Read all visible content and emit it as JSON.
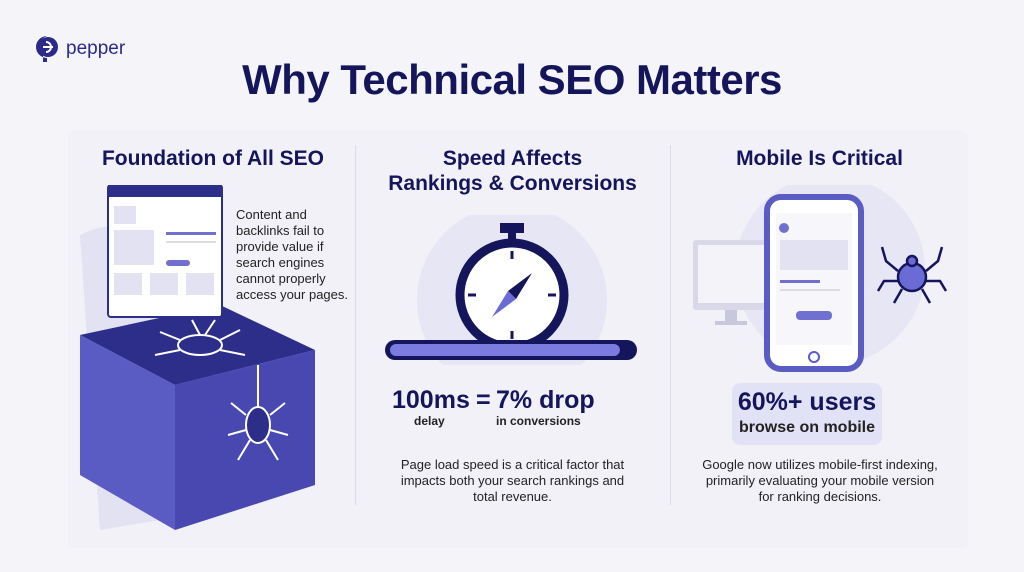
{
  "brand": {
    "name": "pepper",
    "color": "#2a2a8a"
  },
  "title": "Why Technical SEO Matters",
  "colors": {
    "navy": "#15155c",
    "accent": "#6b6bd6",
    "light": "#e4e4f7"
  },
  "columns": [
    {
      "heading": "Foundation of All SEO",
      "body": "Content and backlinks fail to provide value if search engines cannot properly access your pages.",
      "icons": [
        "browser-window-icon",
        "box-icon",
        "spider-icon"
      ]
    },
    {
      "heading_line1": "Speed Affects",
      "heading_line2": "Rankings & Conversions",
      "stat_left": "100ms",
      "stat_eq": "=",
      "stat_right": "7% drop",
      "label_left": "delay",
      "label_right": "in conversions",
      "progress": 0.95,
      "body": "Page load speed is a critical factor that impacts both your search rankings and total revenue.",
      "icons": [
        "stopwatch-icon"
      ]
    },
    {
      "heading": "Mobile Is Critical",
      "stat": "60%+ users",
      "stat_sub": "browse on mobile",
      "body": "Google now utilizes mobile-first indexing, primarily evaluating your mobile version for ranking decisions.",
      "icons": [
        "smartphone-icon",
        "monitor-icon",
        "spider-icon"
      ]
    }
  ]
}
